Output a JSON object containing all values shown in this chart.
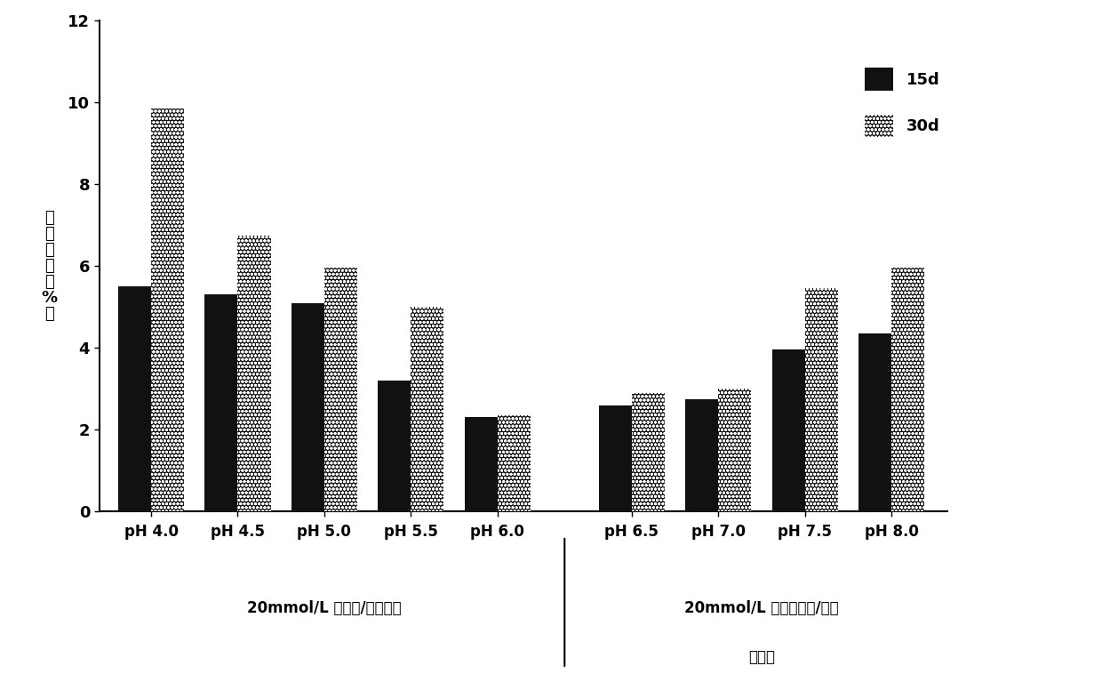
{
  "categories": [
    "pH 4.0",
    "pH 4.5",
    "pH 5.0",
    "pH 5.5",
    "pH 6.0",
    "pH 6.5",
    "pH 7.0",
    "pH 7.5",
    "pH 8.0"
  ],
  "values_15d": [
    5.5,
    5.3,
    5.1,
    3.2,
    2.3,
    2.6,
    2.75,
    3.95,
    4.35
  ],
  "values_30d": [
    9.85,
    6.75,
    5.95,
    5.0,
    2.35,
    2.9,
    3.0,
    5.45,
    5.95
  ],
  "group1_label": "20mmol/L 柠檬酸/柠檬酸钔",
  "group2_label_line1": "20mmol/L 磷酸氢二钔/磷酸",
  "group2_label_line2": "二氢钔",
  "ylabel_chars": [
    "聚",
    "体",
    "含",
    "量",
    "（",
    "%",
    "）"
  ],
  "ylim": [
    0,
    12
  ],
  "yticks": [
    0,
    2,
    4,
    6,
    8,
    10,
    12
  ],
  "legend_15d": "15d",
  "legend_30d": "30d",
  "bar_color_15d": "#111111",
  "bar_color_30d": "#111111",
  "background_color": "#ffffff",
  "bar_width": 0.38,
  "figsize": [
    12.4,
    7.67
  ],
  "dpi": 100
}
